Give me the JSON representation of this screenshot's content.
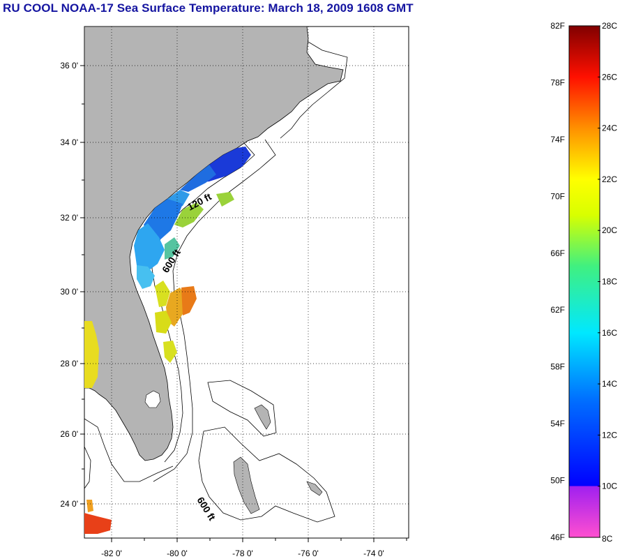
{
  "title": "RU COOL  NOAA-17  Sea Surface Temperature:  March 18, 2009 1608 GMT",
  "map": {
    "lon_ticks": [
      "-82 0'",
      "-80 0'",
      "-78 0'",
      "-76 0'",
      "-74 0'"
    ],
    "lat_ticks": [
      "36 0'",
      "34 0'",
      "32 0'",
      "30 0'",
      "28 0'",
      "26 0'",
      "24 0'"
    ],
    "contour_labels": [
      "120 ft",
      "600 ft",
      "600 ft"
    ],
    "colors": {
      "land": "#b4b4b4",
      "water": "#ffffff",
      "grid": "#000000"
    }
  },
  "colorbar": {
    "fahrenheit_labels": [
      "82F",
      "78F",
      "74F",
      "70F",
      "66F",
      "62F",
      "58F",
      "54F",
      "50F",
      "46F"
    ],
    "celsius_labels": [
      "28C",
      "26C",
      "24C",
      "22C",
      "20C",
      "18C",
      "16C",
      "14C",
      "12C",
      "10C",
      "8C"
    ],
    "range_c": [
      8,
      28
    ]
  }
}
